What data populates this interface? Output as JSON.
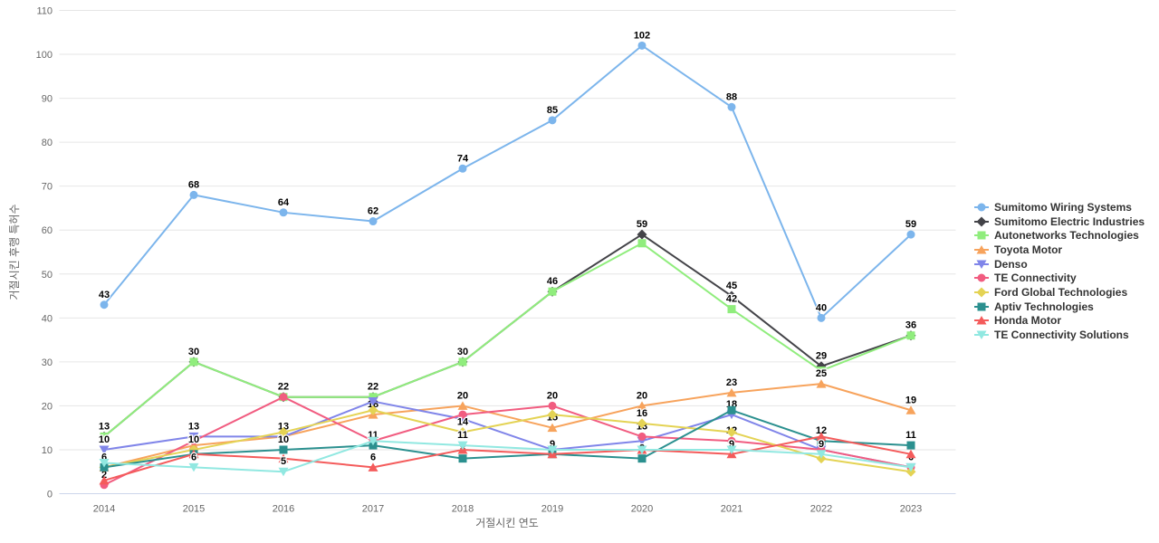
{
  "chart_data": {
    "type": "line",
    "title": "",
    "xlabel": "거절시킨 연도",
    "ylabel": "거절시킨 후행 특허수",
    "categories": [
      "2014",
      "2015",
      "2016",
      "2017",
      "2018",
      "2019",
      "2020",
      "2021",
      "2022",
      "2023"
    ],
    "ylim": [
      0,
      110
    ],
    "ytick_interval": 10,
    "yticks": [
      0,
      10,
      20,
      30,
      40,
      50,
      60,
      70,
      80,
      90,
      100,
      110
    ],
    "grid": "horizontal",
    "legend_position": "right",
    "colors": {
      "background": "#ffffff",
      "grid": "#e6e6e6",
      "axis_line": "#ccd6eb",
      "tick_label": "#666666",
      "axis_title": "#666666",
      "legend_text": "#333333",
      "data_label": "#000000"
    },
    "series": [
      {
        "name": "Sumitomo Wiring Systems",
        "color": "#7cb5ec",
        "marker": "circle",
        "values": [
          43,
          68,
          64,
          62,
          74,
          85,
          102,
          88,
          40,
          59
        ],
        "labels": [
          "43",
          "68",
          "64",
          "62",
          "74",
          "85",
          "102",
          "88",
          "40",
          "59"
        ]
      },
      {
        "name": "Sumitomo Electric Industries",
        "color": "#434348",
        "marker": "diamond",
        "values": [
          13,
          30,
          22,
          22,
          30,
          46,
          59,
          45,
          29,
          36
        ],
        "labels": [
          "13",
          "",
          "",
          "",
          "",
          "",
          "59",
          "45",
          "29",
          "36"
        ]
      },
      {
        "name": "Autonetworks Technologies",
        "color": "#90ed7d",
        "marker": "square",
        "values": [
          13,
          30,
          22,
          22,
          30,
          46,
          57,
          42,
          28,
          36
        ],
        "labels": [
          "",
          "30",
          "",
          "22",
          "30",
          "46",
          "",
          "42",
          "",
          ""
        ]
      },
      {
        "name": "Toyota Motor",
        "color": "#f7a35c",
        "marker": "triangle",
        "values": [
          6,
          11,
          13,
          18,
          20,
          15,
          20,
          23,
          25,
          19
        ],
        "labels": [
          "",
          "",
          "",
          "18",
          "20",
          "15",
          "20",
          "23",
          "25",
          "19"
        ]
      },
      {
        "name": "Denso",
        "color": "#8085e9",
        "marker": "triangle-down",
        "values": [
          10,
          13,
          13,
          21,
          17,
          10,
          12,
          18,
          10,
          6
        ],
        "labels": [
          "10",
          "13",
          "13",
          "",
          "",
          "",
          "",
          "18",
          "",
          ""
        ]
      },
      {
        "name": "TE Connectivity",
        "color": "#f15c80",
        "marker": "circle",
        "values": [
          2,
          12,
          22,
          12,
          18,
          20,
          13,
          12,
          10,
          6
        ],
        "labels": [
          "2",
          "",
          "22",
          "",
          "",
          "20",
          "13",
          "12",
          "",
          "6"
        ]
      },
      {
        "name": "Ford Global Technologies",
        "color": "#e4d354",
        "marker": "diamond",
        "values": [
          6,
          10,
          14,
          19,
          14,
          18,
          16,
          14,
          8,
          5
        ],
        "labels": [
          "",
          "10",
          "",
          "",
          "14",
          "",
          "16",
          "",
          "",
          ""
        ]
      },
      {
        "name": "Aptiv Technologies",
        "color": "#2b908f",
        "marker": "square",
        "values": [
          6,
          9,
          10,
          11,
          8,
          9,
          8,
          19,
          12,
          11
        ],
        "labels": [
          "6",
          "",
          "10",
          "11",
          "8",
          "",
          "8",
          "",
          "12",
          "11"
        ]
      },
      {
        "name": "Honda Motor",
        "color": "#f45b5b",
        "marker": "triangle",
        "values": [
          3,
          9,
          8,
          6,
          10,
          9,
          10,
          9,
          13,
          9
        ],
        "labels": [
          "",
          "",
          "",
          "6",
          "",
          "9",
          "",
          "9",
          "",
          ""
        ]
      },
      {
        "name": "TE Connectivity Solutions",
        "color": "#91e8e1",
        "marker": "triangle-down",
        "values": [
          7,
          6,
          5,
          12,
          11,
          10,
          10,
          10,
          9,
          6
        ],
        "labels": [
          "",
          "6",
          "5",
          "",
          "11",
          "",
          "",
          "",
          "9",
          ""
        ]
      }
    ]
  }
}
